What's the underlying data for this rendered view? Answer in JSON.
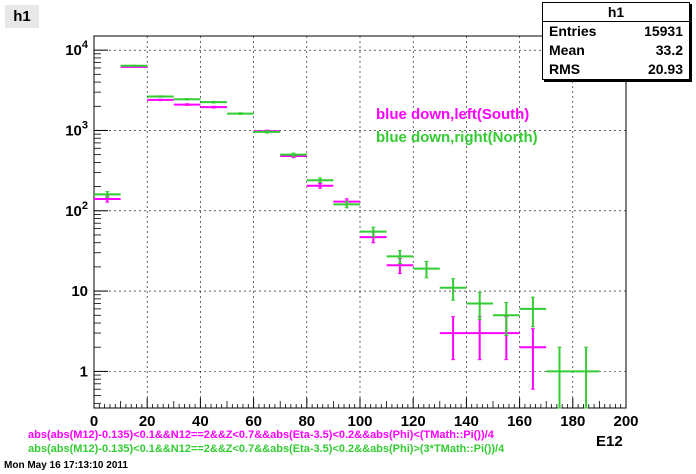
{
  "histogram_title": "h1",
  "stats": {
    "title": "h1",
    "entries_label": "Entries",
    "entries_value": "15931",
    "mean_label": "Mean",
    "mean_value": "33.2",
    "rms_label": "RMS",
    "rms_value": "20.93"
  },
  "legend": {
    "south": "blue down,left(South)",
    "north": "blue down,right(North)"
  },
  "cuts": {
    "magenta": "abs(abs(M12)-0.135)<0.1&&N12==2&&Z<0.7&&abs(Eta-3.5)<0.2&&abs(Phi)<(TMath::Pi())/4",
    "green": "abs(abs(M12)-0.135)<0.1&&N12==2&&Z<0.7&&abs(Eta-3.5)<0.2&&abs(Phi)>(3*TMath::Pi())/4"
  },
  "timestamp": "Mon May 16 17:13:10 2011",
  "colors": {
    "magenta": "#ff00ff",
    "green": "#33cc33",
    "axis": "#000000",
    "grid": "#000000"
  },
  "chart_data": {
    "type": "scatter",
    "xlabel": "E12",
    "ylabel": "",
    "xlim": [
      0,
      200
    ],
    "ylim": [
      0.35,
      15000
    ],
    "yscale": "log",
    "grid": true,
    "legend_position": "top-right",
    "x_ticks": [
      "0",
      "20",
      "40",
      "60",
      "80",
      "100",
      "120",
      "140",
      "160",
      "180",
      "200"
    ],
    "y_ticks": [
      {
        "value": 1,
        "label": "1"
      },
      {
        "value": 10,
        "label": "10"
      },
      {
        "value": 100,
        "label": "10^2"
      },
      {
        "value": 1000,
        "label": "10^3"
      },
      {
        "value": 10000,
        "label": "10^4"
      }
    ],
    "series": [
      {
        "name": "blue down,left(South)",
        "color": "#ff00ff",
        "points": [
          {
            "x": 5,
            "y": 140,
            "xerr": 5,
            "ylo": 128,
            "yhi": 152
          },
          {
            "x": 15,
            "y": 6200,
            "xerr": 5,
            "ylo": 6120,
            "yhi": 6280
          },
          {
            "x": 25,
            "y": 2400,
            "xerr": 5,
            "ylo": 2350,
            "yhi": 2450
          },
          {
            "x": 35,
            "y": 2100,
            "xerr": 5,
            "ylo": 2050,
            "yhi": 2150
          },
          {
            "x": 45,
            "y": 1950,
            "xerr": 5,
            "ylo": 1900,
            "yhi": 2000
          },
          {
            "x": 65,
            "y": 980,
            "xerr": 5,
            "ylo": 950,
            "yhi": 1010
          },
          {
            "x": 75,
            "y": 480,
            "xerr": 5,
            "ylo": 458,
            "yhi": 502
          },
          {
            "x": 85,
            "y": 205,
            "xerr": 5,
            "ylo": 191,
            "yhi": 219
          },
          {
            "x": 95,
            "y": 130,
            "xerr": 5,
            "ylo": 119,
            "yhi": 141
          },
          {
            "x": 105,
            "y": 47,
            "xerr": 5,
            "ylo": 40,
            "yhi": 54
          },
          {
            "x": 115,
            "y": 21,
            "xerr": 5,
            "ylo": 16.5,
            "yhi": 25.5
          },
          {
            "x": 135,
            "y": 3,
            "xerr": 5,
            "ylo": 1.4,
            "yhi": 4.8
          },
          {
            "x": 145,
            "y": 3,
            "xerr": 5,
            "ylo": 1.4,
            "yhi": 4.8
          },
          {
            "x": 155,
            "y": 3,
            "xerr": 5,
            "ylo": 1.4,
            "yhi": 4.8
          },
          {
            "x": 165,
            "y": 2,
            "xerr": 5,
            "ylo": 0.6,
            "yhi": 3.4
          }
        ]
      },
      {
        "name": "blue down,right(North)",
        "color": "#33cc33",
        "points": [
          {
            "x": 5,
            "y": 160,
            "xerr": 5,
            "ylo": 147,
            "yhi": 173
          },
          {
            "x": 15,
            "y": 6400,
            "xerr": 5,
            "ylo": 6320,
            "yhi": 6480
          },
          {
            "x": 25,
            "y": 2650,
            "xerr": 5,
            "ylo": 2600,
            "yhi": 2700
          },
          {
            "x": 35,
            "y": 2450,
            "xerr": 5,
            "ylo": 2400,
            "yhi": 2500
          },
          {
            "x": 45,
            "y": 2250,
            "xerr": 5,
            "ylo": 2200,
            "yhi": 2300
          },
          {
            "x": 55,
            "y": 1620,
            "xerr": 5,
            "ylo": 1580,
            "yhi": 1660
          },
          {
            "x": 65,
            "y": 960,
            "xerr": 5,
            "ylo": 930,
            "yhi": 990
          },
          {
            "x": 75,
            "y": 500,
            "xerr": 5,
            "ylo": 478,
            "yhi": 522
          },
          {
            "x": 85,
            "y": 240,
            "xerr": 5,
            "ylo": 225,
            "yhi": 255
          },
          {
            "x": 95,
            "y": 120,
            "xerr": 5,
            "ylo": 109,
            "yhi": 131
          },
          {
            "x": 105,
            "y": 55,
            "xerr": 5,
            "ylo": 47.5,
            "yhi": 62.5
          },
          {
            "x": 115,
            "y": 27,
            "xerr": 5,
            "ylo": 22,
            "yhi": 32
          },
          {
            "x": 125,
            "y": 19,
            "xerr": 5,
            "ylo": 14.6,
            "yhi": 23.4
          },
          {
            "x": 135,
            "y": 11,
            "xerr": 5,
            "ylo": 7.7,
            "yhi": 14.3
          },
          {
            "x": 145,
            "y": 7,
            "xerr": 5,
            "ylo": 4.4,
            "yhi": 9.6
          },
          {
            "x": 155,
            "y": 5,
            "xerr": 5,
            "ylo": 2.8,
            "yhi": 7.2
          },
          {
            "x": 165,
            "y": 6,
            "xerr": 5,
            "ylo": 3.6,
            "yhi": 8.4
          },
          {
            "x": 175,
            "y": 1,
            "xerr": 5,
            "ylo": 0.35,
            "yhi": 2
          },
          {
            "x": 185,
            "y": 1,
            "xerr": 5,
            "ylo": 0.35,
            "yhi": 2
          }
        ]
      }
    ]
  }
}
